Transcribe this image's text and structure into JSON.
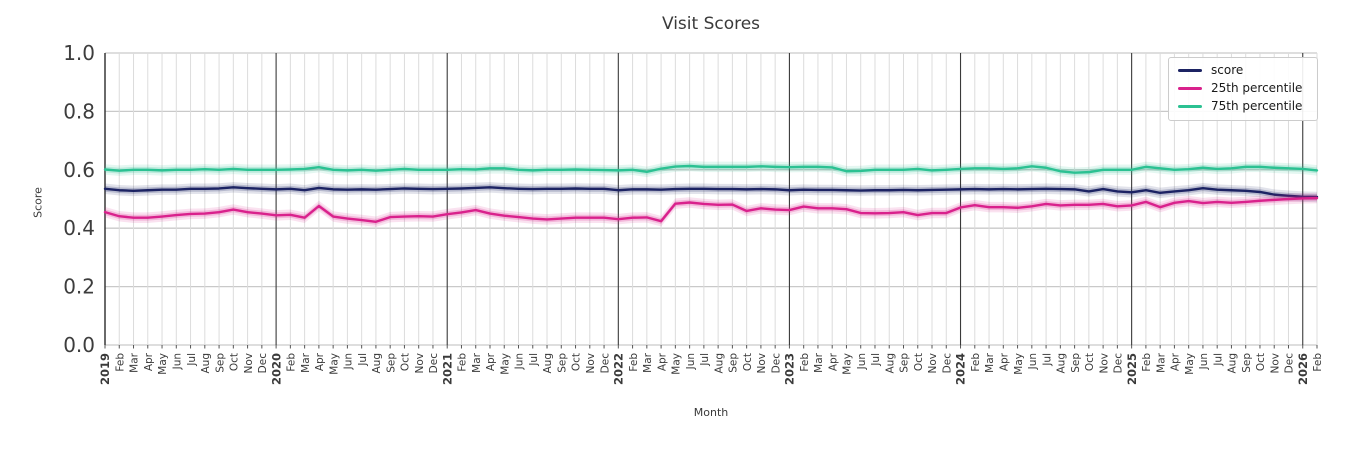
{
  "title": "Visit Scores",
  "axes": {
    "x_label": "Month",
    "y_label": "Score"
  },
  "chart_data": {
    "type": "line",
    "title": "Visit Scores",
    "xlabel": "Month",
    "ylabel": "Score",
    "ylim": [
      0.0,
      1.0
    ],
    "yticks": [
      0.0,
      0.2,
      0.4,
      0.6,
      0.8,
      1.0
    ],
    "grid": true,
    "legend_position": "upper right",
    "x_labels": [
      "2019",
      "Feb",
      "Mar",
      "Apr",
      "May",
      "Jun",
      "Jul",
      "Aug",
      "Sep",
      "Oct",
      "Nov",
      "Dec",
      "2020",
      "Feb",
      "Mar",
      "Apr",
      "May",
      "Jun",
      "Jul",
      "Aug",
      "Sep",
      "Oct",
      "Nov",
      "Dec",
      "2021",
      "Feb",
      "Mar",
      "Apr",
      "May",
      "Jun",
      "Jul",
      "Aug",
      "Sep",
      "Oct",
      "Nov",
      "Dec",
      "2022",
      "Feb",
      "Mar",
      "Apr",
      "May",
      "Jun",
      "Jul",
      "Aug",
      "Sep",
      "Oct",
      "Nov",
      "Dec",
      "2023",
      "Feb",
      "Mar",
      "Apr",
      "May",
      "Jun",
      "Jul",
      "Aug",
      "Sep",
      "Oct",
      "Nov",
      "Dec",
      "2024",
      "Feb",
      "Mar",
      "Apr",
      "May",
      "Jun",
      "Jul",
      "Aug",
      "Sep",
      "Oct",
      "Nov",
      "Dec",
      "2025",
      "Feb",
      "Mar",
      "Apr",
      "May",
      "Jun",
      "Jul",
      "Aug",
      "Sep",
      "Oct",
      "Nov",
      "Dec",
      "2026",
      "Feb"
    ],
    "series": [
      {
        "name": "score",
        "color": "#1c2363",
        "values": [
          0.535,
          0.53,
          0.528,
          0.53,
          0.532,
          0.532,
          0.535,
          0.535,
          0.536,
          0.54,
          0.537,
          0.535,
          0.533,
          0.535,
          0.53,
          0.538,
          0.533,
          0.532,
          0.533,
          0.532,
          0.534,
          0.536,
          0.535,
          0.534,
          0.535,
          0.536,
          0.538,
          0.54,
          0.537,
          0.535,
          0.534,
          0.535,
          0.535,
          0.536,
          0.535,
          0.535,
          0.53,
          0.533,
          0.533,
          0.532,
          0.534,
          0.535,
          0.535,
          0.534,
          0.534,
          0.533,
          0.534,
          0.533,
          0.53,
          0.532,
          0.531,
          0.531,
          0.53,
          0.529,
          0.53,
          0.53,
          0.531,
          0.53,
          0.531,
          0.532,
          0.533,
          0.534,
          0.533,
          0.534,
          0.533,
          0.534,
          0.535,
          0.534,
          0.533,
          0.526,
          0.534,
          0.526,
          0.523,
          0.53,
          0.521,
          0.526,
          0.53,
          0.537,
          0.532,
          0.53,
          0.528,
          0.524,
          0.515,
          0.511,
          0.508,
          0.507
        ]
      },
      {
        "name": "25th percentile",
        "color": "#d9218c",
        "values": [
          0.455,
          0.441,
          0.436,
          0.436,
          0.44,
          0.445,
          0.449,
          0.45,
          0.455,
          0.464,
          0.455,
          0.45,
          0.444,
          0.446,
          0.436,
          0.476,
          0.44,
          0.433,
          0.428,
          0.422,
          0.438,
          0.44,
          0.441,
          0.44,
          0.448,
          0.454,
          0.462,
          0.45,
          0.443,
          0.438,
          0.433,
          0.43,
          0.433,
          0.436,
          0.436,
          0.436,
          0.431,
          0.436,
          0.437,
          0.424,
          0.484,
          0.488,
          0.483,
          0.48,
          0.481,
          0.459,
          0.468,
          0.464,
          0.462,
          0.474,
          0.468,
          0.468,
          0.465,
          0.452,
          0.451,
          0.452,
          0.455,
          0.445,
          0.452,
          0.452,
          0.471,
          0.479,
          0.472,
          0.472,
          0.47,
          0.475,
          0.483,
          0.478,
          0.48,
          0.48,
          0.483,
          0.475,
          0.478,
          0.49,
          0.472,
          0.487,
          0.493,
          0.486,
          0.49,
          0.487,
          0.49,
          0.494,
          0.497,
          0.5,
          0.502,
          0.503
        ]
      },
      {
        "name": "75th percentile",
        "color": "#2bc192",
        "values": [
          0.601,
          0.597,
          0.6,
          0.6,
          0.598,
          0.6,
          0.6,
          0.602,
          0.6,
          0.603,
          0.6,
          0.6,
          0.6,
          0.601,
          0.603,
          0.609,
          0.6,
          0.598,
          0.6,
          0.597,
          0.6,
          0.603,
          0.6,
          0.6,
          0.6,
          0.602,
          0.601,
          0.605,
          0.605,
          0.6,
          0.598,
          0.6,
          0.6,
          0.601,
          0.6,
          0.599,
          0.598,
          0.6,
          0.593,
          0.604,
          0.611,
          0.613,
          0.61,
          0.61,
          0.61,
          0.61,
          0.612,
          0.61,
          0.609,
          0.61,
          0.61,
          0.608,
          0.595,
          0.596,
          0.6,
          0.6,
          0.6,
          0.603,
          0.598,
          0.6,
          0.603,
          0.605,
          0.605,
          0.603,
          0.605,
          0.612,
          0.607,
          0.595,
          0.59,
          0.592,
          0.6,
          0.6,
          0.6,
          0.61,
          0.605,
          0.6,
          0.602,
          0.607,
          0.603,
          0.605,
          0.61,
          0.61,
          0.607,
          0.605,
          0.603,
          0.598
        ]
      }
    ],
    "style": {
      "grid_minor_color": "#dcdcdc",
      "grid_major_color": "#c9c9c9",
      "year_line_color": "#3a3a3a",
      "spine_color": "#333333",
      "tick_label_color": "#3a3a3a",
      "band_offsets": [
        0.018,
        0.01
      ],
      "band_opacities": [
        0.13,
        0.22
      ]
    }
  }
}
